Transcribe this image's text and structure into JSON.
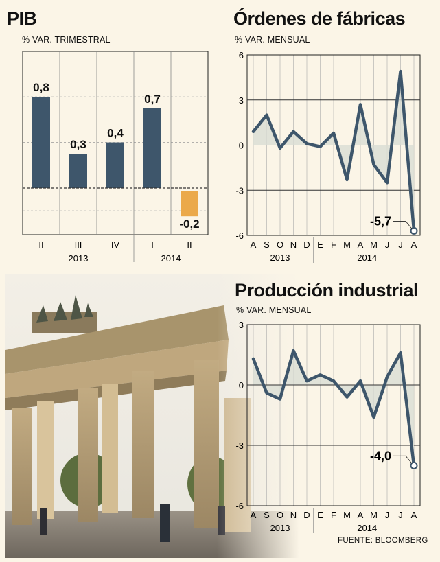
{
  "pib": {
    "title": "PIB",
    "subtitle": "% VAR. TRIMESTRAL",
    "chart_data": {
      "type": "bar",
      "categories": [
        "II",
        "III",
        "IV",
        "I",
        "II"
      ],
      "year_groups": [
        {
          "label": "2013",
          "from": 0,
          "to": 2
        },
        {
          "label": "2014",
          "from": 3,
          "to": 4
        }
      ],
      "values": [
        0.8,
        0.3,
        0.4,
        0.7,
        -0.2
      ],
      "value_labels": [
        "0,8",
        "0,3",
        "0,4",
        "0,7",
        "-0,2"
      ],
      "colors": {
        "positive": "#3e566b",
        "negative": "#eba94a"
      },
      "ylim": [
        -0.5,
        1.2
      ]
    }
  },
  "ordenes": {
    "title": "Órdenes de fábricas",
    "subtitle": "% VAR. MENSUAL",
    "chart_data": {
      "type": "line",
      "x": [
        "A",
        "S",
        "O",
        "N",
        "D",
        "E",
        "F",
        "M",
        "A",
        "M",
        "J",
        "J",
        "A"
      ],
      "year_groups": [
        {
          "label": "2013",
          "from": 0,
          "to": 4
        },
        {
          "label": "2014",
          "from": 5,
          "to": 12
        }
      ],
      "values": [
        0.9,
        2.0,
        -0.2,
        0.9,
        0.1,
        -0.1,
        0.8,
        -2.3,
        2.7,
        -1.3,
        -2.5,
        4.9,
        -5.7
      ],
      "ylim": [
        -6,
        6
      ],
      "yticks": [
        "6",
        "3",
        "0",
        "-3",
        "-6"
      ],
      "annotation": {
        "index": 12,
        "text": "-5,7"
      },
      "line_color": "#3e566b",
      "fill_color": "#d9ddd4"
    }
  },
  "produccion": {
    "title": "Producción industrial",
    "subtitle": "% VAR. MENSUAL",
    "chart_data": {
      "type": "line",
      "x": [
        "A",
        "S",
        "O",
        "N",
        "D",
        "E",
        "F",
        "M",
        "A",
        "M",
        "J",
        "J",
        "A"
      ],
      "year_groups": [
        {
          "label": "2013",
          "from": 0,
          "to": 4
        },
        {
          "label": "2014",
          "from": 5,
          "to": 12
        }
      ],
      "values": [
        1.3,
        -0.4,
        -0.7,
        1.7,
        0.2,
        0.5,
        0.2,
        -0.6,
        0.2,
        -1.6,
        0.4,
        1.6,
        -4.0
      ],
      "ylim": [
        -6,
        3
      ],
      "yticks": [
        "3",
        "0",
        "-3",
        "-6"
      ],
      "annotation": {
        "index": 12,
        "text": "-4,0"
      },
      "line_color": "#3e566b",
      "fill_color": "#d9ddd4"
    }
  },
  "source": "FUENTE: BLOOMBERG",
  "photo": {
    "subject_icon": "brandenburg-gate-photo"
  }
}
